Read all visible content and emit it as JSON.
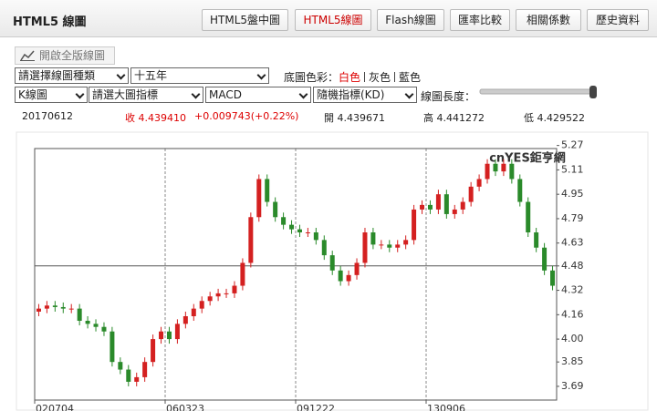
{
  "header": {
    "title": "HTML5 線圖",
    "tabs": [
      "HTML5盤中圖",
      "HTML5線圖",
      "Flash線圖",
      "匯率比較",
      "相關係數",
      "歷史資料"
    ],
    "active_tab": 1
  },
  "toolbar": {
    "fullscreen": "開啟全版線圖",
    "chart_type": "請選擇線圖種類",
    "period": "十五年",
    "bg_label": "底圖色彩：",
    "bg_options": [
      "白色",
      "灰色",
      "藍色"
    ],
    "bg_active": 0,
    "kline": "K線圖",
    "main_indicator": "請選大圖指標",
    "indicator": "MACD",
    "random_indicator": "隨機指標(KD)",
    "length_label": "線圖長度："
  },
  "quote": {
    "date": "20170612",
    "close": "收 4.439410",
    "change": "+0.009743(+0.22%)",
    "open": "開 4.439671",
    "high": "高 4.441272",
    "low": "低 4.429522"
  },
  "chart_data": {
    "type": "candlestick",
    "watermark": "cnYES鉅亨網",
    "categories": [
      "020704",
      null,
      null,
      null,
      null,
      null,
      null,
      null,
      null,
      null,
      null,
      null,
      null,
      null,
      null,
      null,
      "060323",
      null,
      null,
      null,
      null,
      null,
      null,
      null,
      null,
      null,
      null,
      null,
      null,
      null,
      null,
      null,
      "091222",
      null,
      null,
      null,
      null,
      null,
      null,
      null,
      null,
      null,
      null,
      null,
      null,
      null,
      null,
      null,
      "130906",
      null,
      null,
      null,
      null,
      null,
      null,
      null,
      null,
      null,
      null,
      null,
      null,
      null,
      null,
      null
    ],
    "open": [
      4.18,
      4.2,
      4.22,
      4.21,
      4.2,
      4.2,
      4.12,
      4.1,
      4.08,
      4.05,
      3.85,
      3.8,
      3.72,
      3.75,
      3.85,
      4.0,
      4.05,
      4.0,
      4.1,
      4.15,
      4.2,
      4.25,
      4.28,
      4.3,
      4.3,
      4.35,
      4.5,
      4.8,
      5.05,
      4.9,
      4.8,
      4.75,
      4.72,
      4.7,
      4.7,
      4.65,
      4.55,
      4.45,
      4.38,
      4.42,
      4.5,
      4.7,
      4.62,
      4.62,
      4.6,
      4.62,
      4.65,
      4.85,
      4.88,
      4.85,
      4.95,
      4.82,
      4.85,
      4.9,
      5.0,
      5.05,
      5.15,
      5.1,
      5.15,
      5.05,
      4.9,
      4.7,
      4.6,
      4.45
    ],
    "high": [
      4.23,
      4.25,
      4.25,
      4.24,
      4.23,
      4.23,
      4.15,
      4.13,
      4.11,
      4.08,
      3.88,
      3.83,
      3.78,
      3.88,
      4.03,
      4.08,
      4.08,
      4.13,
      4.18,
      4.23,
      4.28,
      4.31,
      4.33,
      4.33,
      4.38,
      4.53,
      4.83,
      5.08,
      5.08,
      4.93,
      4.83,
      4.78,
      4.75,
      4.73,
      4.73,
      4.68,
      4.58,
      4.48,
      4.45,
      4.53,
      4.73,
      4.73,
      4.65,
      4.65,
      4.65,
      4.68,
      4.88,
      4.91,
      4.91,
      4.98,
      4.98,
      4.88,
      4.93,
      5.03,
      5.08,
      5.18,
      5.18,
      5.18,
      5.18,
      5.08,
      4.93,
      4.73,
      4.63,
      4.48
    ],
    "low": [
      4.15,
      4.17,
      4.18,
      4.17,
      4.17,
      4.09,
      4.07,
      4.05,
      4.02,
      3.82,
      3.77,
      3.69,
      3.69,
      3.72,
      3.82,
      3.97,
      3.97,
      3.97,
      4.07,
      4.12,
      4.17,
      4.22,
      4.25,
      4.27,
      4.27,
      4.32,
      4.47,
      4.77,
      4.87,
      4.77,
      4.72,
      4.69,
      4.67,
      4.67,
      4.62,
      4.52,
      4.42,
      4.35,
      4.35,
      4.39,
      4.47,
      4.59,
      4.59,
      4.57,
      4.57,
      4.59,
      4.62,
      4.82,
      4.82,
      4.82,
      4.79,
      4.79,
      4.82,
      4.87,
      4.97,
      5.02,
      5.07,
      5.07,
      5.02,
      4.87,
      4.67,
      4.57,
      4.42,
      4.32
    ],
    "close": [
      4.2,
      4.22,
      4.21,
      4.2,
      4.2,
      4.12,
      4.1,
      4.08,
      4.05,
      3.85,
      3.8,
      3.72,
      3.75,
      3.85,
      4.0,
      4.05,
      4.0,
      4.1,
      4.15,
      4.2,
      4.25,
      4.28,
      4.3,
      4.3,
      4.35,
      4.5,
      4.8,
      5.05,
      4.9,
      4.8,
      4.75,
      4.72,
      4.7,
      4.7,
      4.65,
      4.55,
      4.45,
      4.38,
      4.42,
      4.5,
      4.7,
      4.62,
      4.62,
      4.6,
      4.62,
      4.65,
      4.85,
      4.88,
      4.85,
      4.95,
      4.82,
      4.85,
      4.9,
      5.0,
      5.05,
      5.15,
      5.1,
      5.15,
      5.05,
      4.9,
      4.7,
      4.6,
      4.45,
      4.35
    ],
    "up_color": "#d42020",
    "down_color": "#2a8a2a",
    "ylim": [
      3.6,
      5.25
    ],
    "yticks": [
      5.27,
      5.11,
      4.95,
      4.79,
      4.63,
      4.48,
      4.32,
      4.16,
      {
        "value": 4,
        "label": "4.00"
      },
      3.85,
      3.69
    ],
    "hline": 4.48
  }
}
